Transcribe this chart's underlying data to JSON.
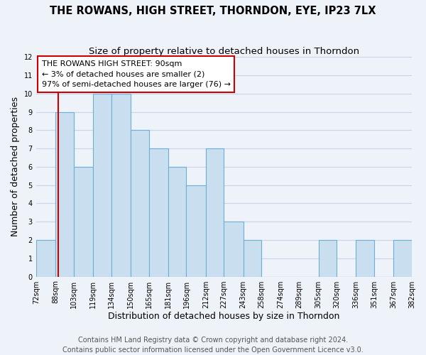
{
  "title": "THE ROWANS, HIGH STREET, THORNDON, EYE, IP23 7LX",
  "subtitle": "Size of property relative to detached houses in Thorndon",
  "xlabel": "Distribution of detached houses by size in Thorndon",
  "ylabel": "Number of detached properties",
  "bar_edges": [
    72,
    88,
    103,
    119,
    134,
    150,
    165,
    181,
    196,
    212,
    227,
    243,
    258,
    274,
    289,
    305,
    320,
    336,
    351,
    367,
    382
  ],
  "bar_heights": [
    2,
    9,
    6,
    10,
    10,
    8,
    7,
    6,
    5,
    7,
    3,
    2,
    0,
    0,
    0,
    2,
    0,
    2,
    0,
    2
  ],
  "bar_color": "#c9dff0",
  "bar_edge_color": "#6baed6",
  "reference_line_x": 90,
  "reference_line_color": "#cc0000",
  "annotation_line1": "THE ROWANS HIGH STREET: 90sqm",
  "annotation_line2": "← 3% of detached houses are smaller (2)",
  "annotation_line3": "97% of semi-detached houses are larger (76) →",
  "ylim": [
    0,
    12
  ],
  "yticks": [
    0,
    1,
    2,
    3,
    4,
    5,
    6,
    7,
    8,
    9,
    10,
    11,
    12
  ],
  "footer_line1": "Contains HM Land Registry data © Crown copyright and database right 2024.",
  "footer_line2": "Contains public sector information licensed under the Open Government Licence v3.0.",
  "background_color": "#eef2f9",
  "plot_bg_color": "#eef2f9",
  "grid_color": "#c8d4e8",
  "title_fontsize": 10.5,
  "subtitle_fontsize": 9.5,
  "axis_label_fontsize": 9,
  "tick_fontsize": 7,
  "annotation_fontsize": 8,
  "footer_fontsize": 7
}
